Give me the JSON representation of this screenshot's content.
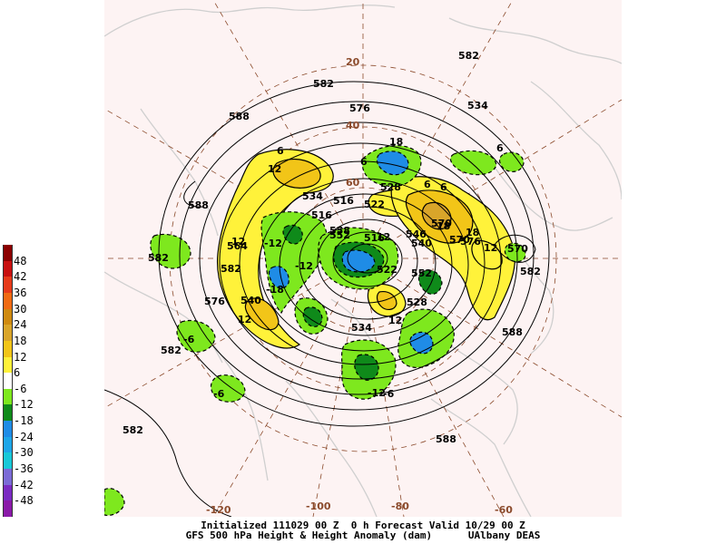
{
  "title_line1": "Initialized 111029 00 Z  0 h Forecast Valid 10/29 00 Z",
  "title_line2": "GFS 500 hPa Height & Height Anomaly (dam)      UAlbany DEAS",
  "colorbar": {
    "ticks": [
      "48",
      "42",
      "36",
      "30",
      "24",
      "18",
      "12",
      "6",
      "-6",
      "-12",
      "-18",
      "-24",
      "-30",
      "-36",
      "-42",
      "-48"
    ],
    "colors": [
      "#8b0000",
      "#c81010",
      "#e63a1a",
      "#f06a12",
      "#cf8a10",
      "#d9a52a",
      "#f2c518",
      "#fff23a",
      "#ffffff",
      "#7ee81e",
      "#0f8a1a",
      "#1f8ce6",
      "#1ea6e8",
      "#19c8d8",
      "#7b6bd6",
      "#7a2bc2",
      "#8a1aa8"
    ]
  },
  "map": {
    "land_color": "#fdf2f2",
    "border_color": "#c8c8c8",
    "grid_color": "#8b4a2b",
    "latitude_labels": [
      "20",
      "40",
      "60"
    ],
    "longitude_labels": [
      "-120",
      "-100",
      "-80",
      "-60"
    ],
    "height_labels": [
      "582",
      "582",
      "588",
      "582",
      "576",
      "588",
      "582",
      "582",
      "588",
      "588",
      "582",
      "576",
      "570",
      "576",
      "582",
      "540",
      "516",
      "516",
      "522",
      "528",
      "534",
      "540",
      "546",
      "552",
      "558",
      "564",
      "570",
      "552",
      "528",
      "534",
      "516",
      "522",
      "570",
      "534",
      "582"
    ],
    "anomaly_labels": [
      "6",
      "12",
      "12",
      "18",
      "6",
      "6",
      "6",
      "12",
      "18",
      "12",
      "12",
      "18",
      "6",
      "12",
      "-6",
      "-6",
      "-6",
      "-12",
      "-12",
      "-12",
      "-18"
    ]
  }
}
